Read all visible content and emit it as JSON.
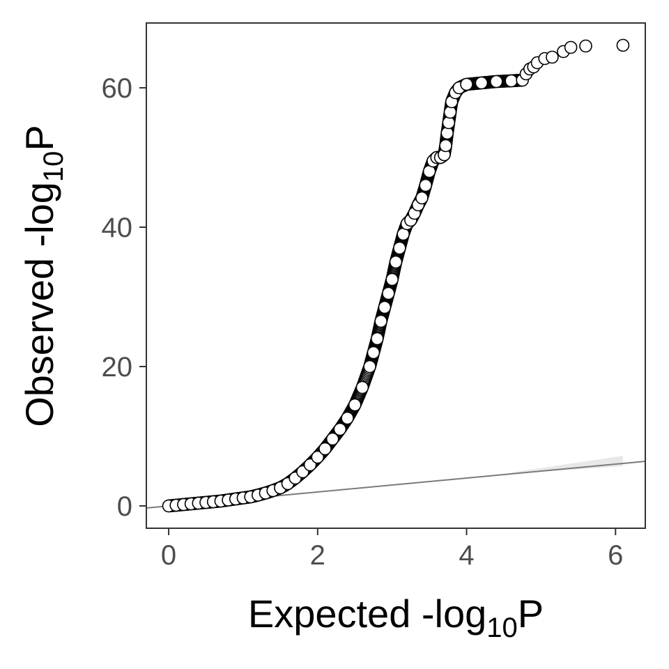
{
  "chart_data": {
    "type": "scatter",
    "xlabel": {
      "prefix": "Expected -log",
      "sub": "10",
      "suffix": "P"
    },
    "ylabel": {
      "prefix": "Observed -log",
      "sub": "10",
      "suffix": "P"
    },
    "xlim": [
      -0.3,
      6.4
    ],
    "ylim": [
      -3.2,
      69.3
    ],
    "x_ticks": [
      0,
      2,
      4,
      6
    ],
    "y_ticks": [
      0,
      20,
      40,
      60
    ],
    "grid": false,
    "legend": "none",
    "reference_line": {
      "slope": 1.0,
      "intercept": 0.0
    },
    "confidence_band": {
      "x": [
        4.6,
        6.1
      ],
      "y_lower": [
        4.6,
        5.7
      ],
      "y_upper": [
        4.8,
        7.2
      ]
    },
    "series": [
      {
        "points": [
          [
            0.0,
            0.0
          ],
          [
            0.1,
            0.1
          ],
          [
            0.2,
            0.2
          ],
          [
            0.3,
            0.3
          ],
          [
            0.4,
            0.4
          ],
          [
            0.5,
            0.5
          ],
          [
            0.6,
            0.6
          ],
          [
            0.7,
            0.7
          ],
          [
            0.8,
            0.85
          ],
          [
            0.9,
            1.0
          ],
          [
            1.0,
            1.15
          ],
          [
            1.1,
            1.3
          ],
          [
            1.2,
            1.55
          ],
          [
            1.3,
            1.85
          ],
          [
            1.4,
            2.2
          ],
          [
            1.5,
            2.6
          ],
          [
            1.6,
            3.2
          ],
          [
            1.7,
            4.0
          ],
          [
            1.8,
            4.9
          ],
          [
            1.9,
            5.9
          ],
          [
            2.0,
            7.0
          ],
          [
            2.1,
            8.2
          ],
          [
            2.2,
            9.6
          ],
          [
            2.3,
            11.0
          ],
          [
            2.4,
            12.6
          ],
          [
            2.5,
            14.5
          ],
          [
            2.6,
            17.0
          ],
          [
            2.7,
            20.0
          ],
          [
            2.75,
            22.0
          ],
          [
            2.8,
            24.0
          ],
          [
            2.85,
            26.5
          ],
          [
            2.9,
            28.5
          ],
          [
            2.95,
            30.5
          ],
          [
            3.0,
            32.5
          ],
          [
            3.05,
            35.0
          ],
          [
            3.1,
            37.0
          ],
          [
            3.15,
            39.0
          ],
          [
            3.2,
            40.5
          ],
          [
            3.25,
            41.0
          ],
          [
            3.3,
            42.0
          ],
          [
            3.35,
            43.2
          ],
          [
            3.4,
            44.2
          ],
          [
            3.45,
            46.0
          ],
          [
            3.5,
            48.0
          ],
          [
            3.55,
            49.5
          ],
          [
            3.6,
            50.0
          ],
          [
            3.65,
            50.0
          ],
          [
            3.7,
            50.4
          ],
          [
            3.72,
            51.7
          ],
          [
            3.74,
            53.5
          ],
          [
            3.76,
            55.0
          ],
          [
            3.78,
            56.5
          ],
          [
            3.8,
            58.0
          ],
          [
            3.85,
            59.3
          ],
          [
            3.9,
            60.0
          ],
          [
            4.0,
            60.5
          ],
          [
            4.2,
            60.7
          ],
          [
            4.4,
            60.9
          ],
          [
            4.6,
            61.0
          ],
          [
            4.75,
            61.1
          ],
          [
            4.8,
            62.0
          ],
          [
            4.85,
            62.7
          ],
          [
            4.9,
            63.0
          ],
          [
            4.95,
            63.6
          ],
          [
            5.05,
            64.2
          ],
          [
            5.15,
            64.4
          ],
          [
            5.3,
            65.2
          ],
          [
            5.4,
            65.8
          ],
          [
            5.6,
            66.0
          ],
          [
            6.1,
            66.1
          ]
        ]
      }
    ]
  }
}
